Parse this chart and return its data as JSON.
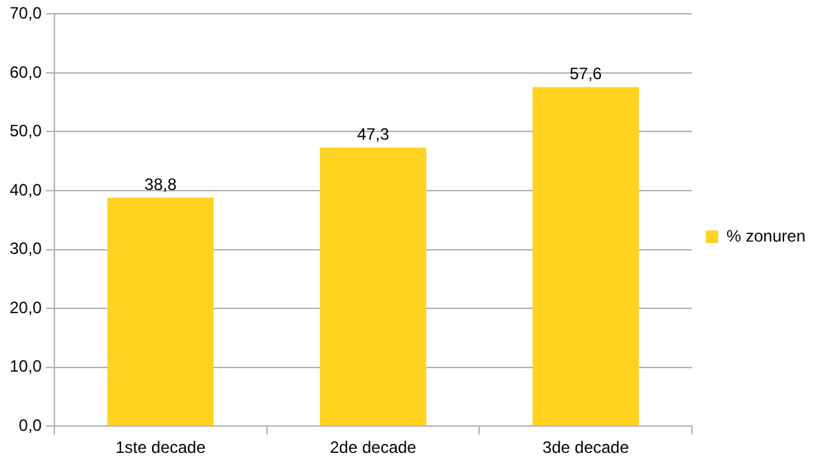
{
  "chart_data": {
    "type": "bar",
    "categories": [
      "1ste decade",
      "2de decade",
      "3de decade"
    ],
    "series": [
      {
        "name": "% zonuren",
        "color": "#ffd320",
        "values": [
          38.8,
          47.3,
          57.6
        ],
        "value_labels": [
          "38,8",
          "47,3",
          "57,6"
        ]
      }
    ],
    "ylim": [
      0,
      70
    ],
    "yticks": [
      {
        "value": 0,
        "label": "0,0"
      },
      {
        "value": 10,
        "label": "10,0"
      },
      {
        "value": 20,
        "label": "20,0"
      },
      {
        "value": 30,
        "label": "30,0"
      },
      {
        "value": 40,
        "label": "40,0"
      },
      {
        "value": 50,
        "label": "50,0"
      },
      {
        "value": 60,
        "label": "60,0"
      },
      {
        "value": 70,
        "label": "70,0"
      }
    ],
    "grid": "y",
    "legend": "right"
  }
}
